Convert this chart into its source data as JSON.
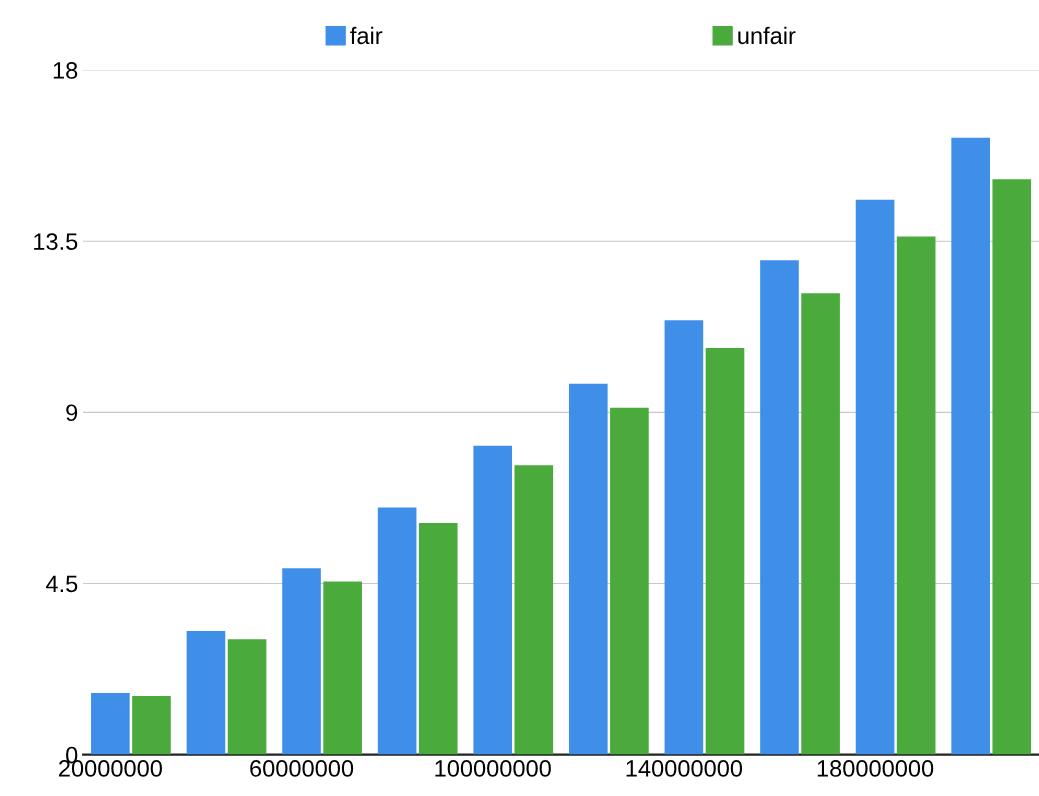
{
  "chart_data": {
    "type": "bar",
    "categories": [
      "20000000",
      null,
      "60000000",
      null,
      "100000000",
      null,
      "140000000",
      null,
      "180000000",
      null
    ],
    "series": [
      {
        "name": "fair",
        "color": "#3f8fe8",
        "values": [
          1.62,
          3.25,
          4.9,
          6.5,
          8.12,
          9.75,
          11.42,
          13.0,
          14.59,
          16.22
        ]
      },
      {
        "name": "unfair",
        "color": "#4aaa3c",
        "values": [
          1.54,
          3.03,
          4.55,
          6.09,
          7.61,
          9.12,
          10.69,
          12.13,
          13.62,
          15.13
        ]
      }
    ],
    "ylim": [
      0,
      18
    ],
    "yticks": [
      0,
      4.5,
      9,
      13.5,
      18
    ],
    "grid": "y",
    "legend": "top"
  }
}
